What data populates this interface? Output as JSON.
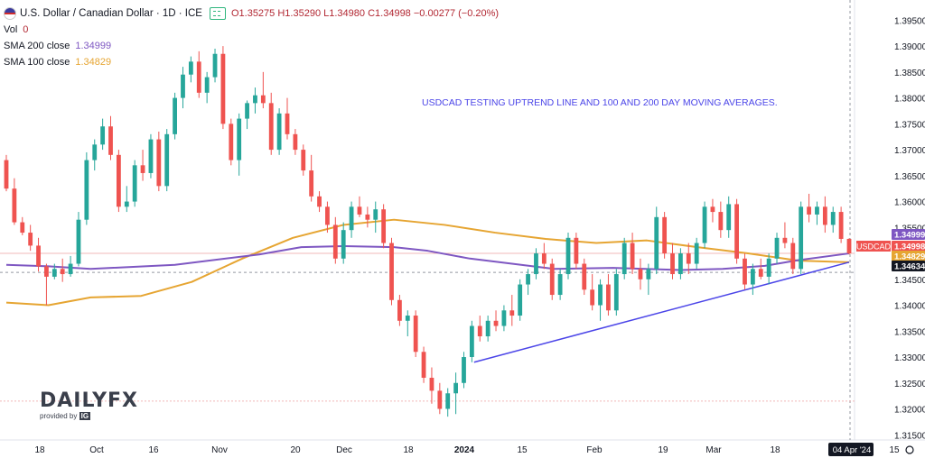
{
  "symbol_title": "U.S. Dollar / Canadian Dollar · 1D · ICE",
  "ohlc": {
    "open": "O1.35275",
    "high": "H1.35290",
    "low": "L1.34980",
    "close": "C1.34998",
    "change": "−0.00277 (−0.20%)"
  },
  "indicators": [
    {
      "label": "Vol",
      "value": "0",
      "color": "#b22833"
    },
    {
      "label": "SMA 200 close",
      "value": "1.34999",
      "color": "#7e57c2"
    },
    {
      "label": "SMA 100 close",
      "value": "1.34829",
      "color": "#f0a500"
    }
  ],
  "annotation": "USDCAD TESTING UPTREND LINE AND 100 AND 200 DAY MOVING AVERAGES.",
  "branding": {
    "name": "DAILYFX",
    "provided": "provided by",
    "ig": "IG"
  },
  "colors": {
    "up": "#26a69a",
    "down": "#ef5350",
    "sma200": "#7e57c2",
    "sma100": "#e6a532",
    "trend": "#4b45e8",
    "price_tag": "#ef5350",
    "axis_text": "#131722"
  },
  "chart_data": {
    "type": "candlestick",
    "yaxis": {
      "min": 1.314,
      "max": 1.3975,
      "ticks": [
        "1.39500",
        "1.39000",
        "1.38500",
        "1.38000",
        "1.37500",
        "1.37000",
        "1.36500",
        "1.36000",
        "1.35500",
        "1.35000",
        "1.34500",
        "1.34000",
        "1.33500",
        "1.33000",
        "1.32500",
        "1.32000",
        "1.31500"
      ]
    },
    "xaxis_labels": [
      "18",
      "Oct",
      "16",
      "Nov",
      "20",
      "Dec",
      "18",
      "2024",
      "15",
      "Feb",
      "19",
      "Mar",
      "18",
      "04 Apr '24",
      "15"
    ],
    "price_tags": [
      {
        "label": "",
        "value": "1.34999",
        "bg": "#7e57c2",
        "fg": "#ffffff"
      },
      {
        "label": "USDCAD",
        "value": "1.34998",
        "bg": "#ef5350",
        "fg": "#ffffff"
      },
      {
        "label": "",
        "value": "1.34829",
        "bg": "#e6a532",
        "fg": "#ffffff"
      },
      {
        "label": "",
        "value": "1.34634",
        "bg": "#131722",
        "fg": "#ffffff"
      }
    ],
    "candles": [
      [
        1.368,
        1.369,
        1.362,
        1.3625
      ],
      [
        1.3625,
        1.3645,
        1.3555,
        1.356
      ],
      [
        1.356,
        1.357,
        1.3535,
        1.354
      ],
      [
        1.354,
        1.3555,
        1.3505,
        1.3515
      ],
      [
        1.3515,
        1.353,
        1.3465,
        1.3475
      ],
      [
        1.3475,
        1.348,
        1.34,
        1.3455
      ],
      [
        1.3455,
        1.348,
        1.345,
        1.347
      ],
      [
        1.347,
        1.349,
        1.3445,
        1.346
      ],
      [
        1.346,
        1.3495,
        1.3455,
        1.348
      ],
      [
        1.348,
        1.358,
        1.3475,
        1.3565
      ],
      [
        1.3565,
        1.3695,
        1.3555,
        1.368
      ],
      [
        1.368,
        1.372,
        1.366,
        1.371
      ],
      [
        1.371,
        1.376,
        1.37,
        1.3745
      ],
      [
        1.3745,
        1.3765,
        1.368,
        1.369
      ],
      [
        1.369,
        1.37,
        1.358,
        1.359
      ],
      [
        1.359,
        1.363,
        1.358,
        1.36
      ],
      [
        1.36,
        1.368,
        1.359,
        1.367
      ],
      [
        1.367,
        1.37,
        1.364,
        1.3655
      ],
      [
        1.3655,
        1.373,
        1.3645,
        1.372
      ],
      [
        1.372,
        1.3735,
        1.362,
        1.363
      ],
      [
        1.363,
        1.374,
        1.362,
        1.373
      ],
      [
        1.373,
        1.381,
        1.372,
        1.38
      ],
      [
        1.38,
        1.386,
        1.378,
        1.3845
      ],
      [
        1.3845,
        1.388,
        1.383,
        1.387
      ],
      [
        1.387,
        1.389,
        1.38,
        1.381
      ],
      [
        1.381,
        1.385,
        1.379,
        1.384
      ],
      [
        1.384,
        1.3895,
        1.383,
        1.3885
      ],
      [
        1.3885,
        1.39,
        1.374,
        1.375
      ],
      [
        1.375,
        1.376,
        1.367,
        1.368
      ],
      [
        1.368,
        1.377,
        1.365,
        1.376
      ],
      [
        1.376,
        1.3795,
        1.374,
        1.379
      ],
      [
        1.379,
        1.382,
        1.377,
        1.3805
      ],
      [
        1.3805,
        1.385,
        1.378,
        1.379
      ],
      [
        1.379,
        1.381,
        1.369,
        1.37
      ],
      [
        1.37,
        1.378,
        1.369,
        1.377
      ],
      [
        1.377,
        1.38,
        1.372,
        1.373
      ],
      [
        1.373,
        1.374,
        1.369,
        1.37
      ],
      [
        1.37,
        1.371,
        1.365,
        1.366
      ],
      [
        1.366,
        1.369,
        1.36,
        1.361
      ],
      [
        1.361,
        1.362,
        1.358,
        1.359
      ],
      [
        1.359,
        1.36,
        1.354,
        1.3555
      ],
      [
        1.3555,
        1.357,
        1.348,
        1.349
      ],
      [
        1.349,
        1.356,
        1.348,
        1.3545
      ],
      [
        1.3545,
        1.36,
        1.353,
        1.359
      ],
      [
        1.359,
        1.361,
        1.357,
        1.3575
      ],
      [
        1.3575,
        1.359,
        1.355,
        1.3565
      ],
      [
        1.3565,
        1.36,
        1.354,
        1.3585
      ],
      [
        1.3585,
        1.3595,
        1.351,
        1.352
      ],
      [
        1.352,
        1.353,
        1.34,
        1.341
      ],
      [
        1.341,
        1.342,
        1.336,
        1.337
      ],
      [
        1.337,
        1.339,
        1.334,
        1.338
      ],
      [
        1.338,
        1.339,
        1.33,
        1.331
      ],
      [
        1.331,
        1.332,
        1.325,
        1.326
      ],
      [
        1.326,
        1.328,
        1.321,
        1.3235
      ],
      [
        1.3235,
        1.325,
        1.319,
        1.32
      ],
      [
        1.32,
        1.324,
        1.3185,
        1.323
      ],
      [
        1.323,
        1.327,
        1.319,
        1.325
      ],
      [
        1.325,
        1.331,
        1.324,
        1.33
      ],
      [
        1.33,
        1.337,
        1.329,
        1.336
      ],
      [
        1.336,
        1.338,
        1.333,
        1.334
      ],
      [
        1.334,
        1.338,
        1.333,
        1.337
      ],
      [
        1.337,
        1.339,
        1.335,
        1.336
      ],
      [
        1.336,
        1.34,
        1.335,
        1.339
      ],
      [
        1.339,
        1.342,
        1.336,
        1.338
      ],
      [
        1.338,
        1.345,
        1.337,
        1.344
      ],
      [
        1.344,
        1.347,
        1.342,
        1.346
      ],
      [
        1.346,
        1.351,
        1.345,
        1.35
      ],
      [
        1.35,
        1.352,
        1.347,
        1.348
      ],
      [
        1.348,
        1.349,
        1.341,
        1.342
      ],
      [
        1.342,
        1.347,
        1.341,
        1.346
      ],
      [
        1.346,
        1.354,
        1.345,
        1.353
      ],
      [
        1.353,
        1.354,
        1.347,
        1.348
      ],
      [
        1.348,
        1.349,
        1.342,
        1.343
      ],
      [
        1.343,
        1.346,
        1.339,
        1.34
      ],
      [
        1.34,
        1.345,
        1.337,
        1.344
      ],
      [
        1.344,
        1.346,
        1.338,
        1.339
      ],
      [
        1.339,
        1.347,
        1.338,
        1.346
      ],
      [
        1.346,
        1.353,
        1.345,
        1.352
      ],
      [
        1.352,
        1.354,
        1.346,
        1.347
      ],
      [
        1.347,
        1.349,
        1.343,
        1.345
      ],
      [
        1.345,
        1.348,
        1.342,
        1.347
      ],
      [
        1.347,
        1.359,
        1.346,
        1.357
      ],
      [
        1.357,
        1.358,
        1.349,
        1.35
      ],
      [
        1.35,
        1.352,
        1.345,
        1.346
      ],
      [
        1.346,
        1.351,
        1.345,
        1.35
      ],
      [
        1.35,
        1.352,
        1.346,
        1.348
      ],
      [
        1.348,
        1.353,
        1.347,
        1.352
      ],
      [
        1.352,
        1.36,
        1.351,
        1.359
      ],
      [
        1.359,
        1.3605,
        1.356,
        1.358
      ],
      [
        1.358,
        1.36,
        1.353,
        1.3545
      ],
      [
        1.3545,
        1.361,
        1.353,
        1.3595
      ],
      [
        1.3595,
        1.3605,
        1.348,
        1.349
      ],
      [
        1.349,
        1.35,
        1.343,
        1.344
      ],
      [
        1.344,
        1.348,
        1.342,
        1.347
      ],
      [
        1.347,
        1.349,
        1.345,
        1.3455
      ],
      [
        1.3455,
        1.35,
        1.344,
        1.349
      ],
      [
        1.349,
        1.354,
        1.348,
        1.353
      ],
      [
        1.353,
        1.356,
        1.351,
        1.352
      ],
      [
        1.352,
        1.353,
        1.346,
        1.347
      ],
      [
        1.347,
        1.36,
        1.346,
        1.359
      ],
      [
        1.359,
        1.3615,
        1.356,
        1.3575
      ],
      [
        1.3575,
        1.36,
        1.3555,
        1.359
      ],
      [
        1.359,
        1.361,
        1.354,
        1.3555
      ],
      [
        1.3555,
        1.359,
        1.354,
        1.358
      ],
      [
        1.358,
        1.359,
        1.352,
        1.3528
      ],
      [
        1.3528,
        1.3529,
        1.3498,
        1.35
      ]
    ],
    "sma200": [
      [
        0,
        1.3478
      ],
      [
        0.05,
        1.3475
      ],
      [
        0.1,
        1.347
      ],
      [
        0.2,
        1.3478
      ],
      [
        0.3,
        1.3498
      ],
      [
        0.35,
        1.3512
      ],
      [
        0.4,
        1.3514
      ],
      [
        0.46,
        1.3512
      ],
      [
        0.5,
        1.3505
      ],
      [
        0.55,
        1.349
      ],
      [
        0.6,
        1.348
      ],
      [
        0.65,
        1.347
      ],
      [
        0.72,
        1.3472
      ],
      [
        0.8,
        1.3468
      ],
      [
        0.85,
        1.347
      ],
      [
        0.9,
        1.3476
      ],
      [
        0.94,
        1.3487
      ],
      [
        1.0,
        1.35
      ]
    ],
    "sma100": [
      [
        0,
        1.3405
      ],
      [
        0.05,
        1.34
      ],
      [
        0.1,
        1.3415
      ],
      [
        0.16,
        1.3418
      ],
      [
        0.22,
        1.3445
      ],
      [
        0.28,
        1.349
      ],
      [
        0.34,
        1.353
      ],
      [
        0.4,
        1.3555
      ],
      [
        0.46,
        1.3565
      ],
      [
        0.52,
        1.3555
      ],
      [
        0.58,
        1.354
      ],
      [
        0.64,
        1.3528
      ],
      [
        0.7,
        1.352
      ],
      [
        0.76,
        1.3525
      ],
      [
        0.82,
        1.3512
      ],
      [
        0.88,
        1.35
      ],
      [
        0.94,
        1.3486
      ],
      [
        1.0,
        1.3483
      ]
    ],
    "trendline": [
      [
        0.555,
        1.329
      ],
      [
        1.0,
        1.3483
      ]
    ]
  }
}
